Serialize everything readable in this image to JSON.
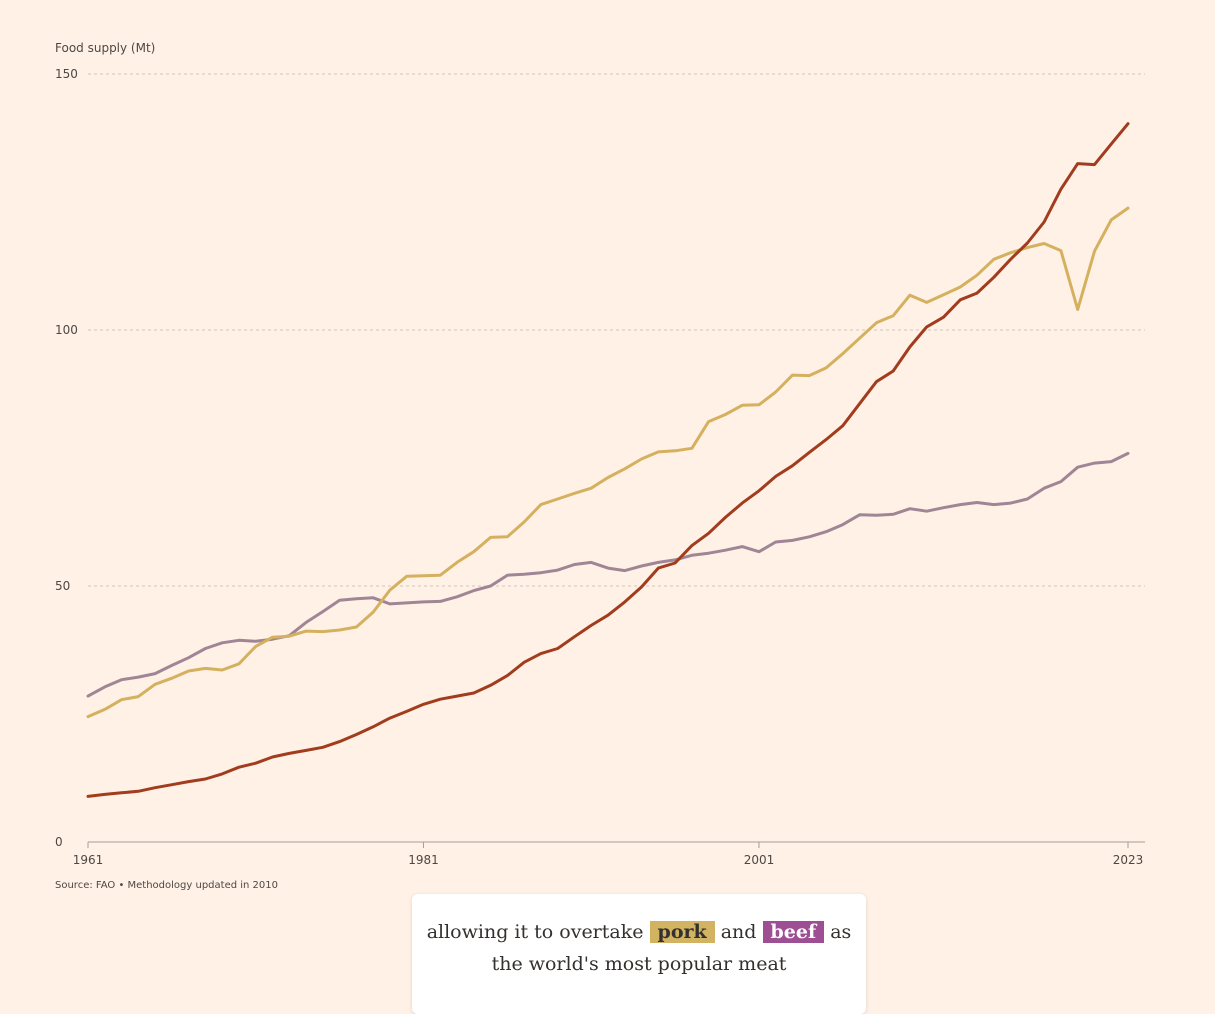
{
  "chart_data": {
    "type": "line",
    "ylabel": "Food supply (Mt)",
    "ylim": [
      0,
      150
    ],
    "yticks": [
      0,
      50,
      100,
      150
    ],
    "xlim": [
      1961,
      2023
    ],
    "xticks": [
      1961,
      1981,
      2001,
      2023
    ],
    "grid": true,
    "source": "Source: FAO • Methodology updated in 2010",
    "series": [
      {
        "key": "beef",
        "color": "#a08596",
        "x": [
          1961,
          1962,
          1963,
          1964,
          1965,
          1966,
          1967,
          1968,
          1969,
          1970,
          1971,
          1972,
          1973,
          1974,
          1975,
          1976,
          1977,
          1978,
          1979,
          1980,
          1981,
          1982,
          1983,
          1984,
          1985,
          1986,
          1987,
          1988,
          1989,
          1990,
          1991,
          1992,
          1993,
          1994,
          1995,
          1996,
          1997,
          1998,
          1999,
          2000,
          2001,
          2002,
          2003,
          2004,
          2005,
          2006,
          2007,
          2008,
          2009,
          2010,
          2011,
          2012,
          2013,
          2014,
          2015,
          2016,
          2017,
          2018,
          2019,
          2020,
          2021,
          2022,
          2023
        ],
        "values": [
          28.5,
          30.3,
          31.7,
          32.2,
          32.9,
          34.5,
          36.0,
          37.8,
          38.9,
          39.4,
          39.2,
          39.6,
          40.3,
          42.9,
          45.0,
          47.2,
          47.5,
          47.7,
          46.5,
          46.7,
          46.9,
          47.0,
          47.9,
          49.1,
          50.0,
          52.1,
          52.3,
          52.6,
          53.1,
          54.2,
          54.6,
          53.5,
          53.0,
          53.9,
          54.6,
          55.1,
          56.0,
          56.4,
          57.0,
          57.7,
          56.7,
          58.6,
          58.9,
          59.6,
          60.6,
          62.0,
          63.9,
          63.8,
          64.0,
          65.1,
          64.6,
          65.3,
          65.9,
          66.3,
          65.9,
          66.2,
          67.0,
          69.1,
          70.4,
          73.2,
          74.0,
          74.3,
          75.9
        ]
      },
      {
        "key": "pork",
        "color": "#d4b05f",
        "x": [
          1961,
          1962,
          1963,
          1964,
          1965,
          1966,
          1967,
          1968,
          1969,
          1970,
          1971,
          1972,
          1973,
          1974,
          1975,
          1976,
          1977,
          1978,
          1979,
          1980,
          1981,
          1982,
          1983,
          1984,
          1985,
          1986,
          1987,
          1988,
          1989,
          1990,
          1991,
          1992,
          1993,
          1994,
          1995,
          1996,
          1997,
          1998,
          1999,
          2000,
          2001,
          2002,
          2003,
          2004,
          2005,
          2006,
          2007,
          2008,
          2009,
          2010,
          2011,
          2012,
          2013,
          2014,
          2015,
          2016,
          2017,
          2018,
          2019,
          2020,
          2021,
          2022,
          2023
        ],
        "values": [
          24.5,
          25.9,
          27.8,
          28.4,
          30.8,
          32.0,
          33.4,
          33.9,
          33.6,
          34.8,
          38.2,
          40.0,
          40.2,
          41.2,
          41.1,
          41.4,
          42.0,
          44.9,
          49.2,
          51.9,
          52.0,
          52.1,
          54.6,
          56.7,
          59.5,
          59.6,
          62.5,
          65.9,
          67.0,
          68.1,
          69.1,
          71.2,
          72.9,
          74.8,
          76.2,
          76.4,
          76.9,
          82.1,
          83.5,
          85.3,
          85.4,
          87.9,
          91.2,
          91.1,
          92.6,
          95.4,
          98.4,
          101.4,
          102.8,
          106.8,
          105.4,
          106.9,
          108.4,
          110.7,
          113.8,
          115.1,
          116.1,
          116.9,
          115.5,
          104.0,
          115.4,
          121.5,
          123.8
        ]
      },
      {
        "key": "chicken",
        "color": "#a13c1e",
        "x": [
          1961,
          1962,
          1963,
          1964,
          1965,
          1966,
          1967,
          1968,
          1969,
          1970,
          1971,
          1972,
          1973,
          1974,
          1975,
          1976,
          1977,
          1978,
          1979,
          1980,
          1981,
          1982,
          1983,
          1984,
          1985,
          1986,
          1987,
          1988,
          1989,
          1990,
          1991,
          1992,
          1993,
          1994,
          1995,
          1996,
          1997,
          1998,
          1999,
          2000,
          2001,
          2002,
          2003,
          2004,
          2005,
          2006,
          2007,
          2008,
          2009,
          2010,
          2011,
          2012,
          2013,
          2014,
          2015,
          2016,
          2017,
          2018,
          2019,
          2020,
          2021,
          2022,
          2023
        ],
        "values": [
          8.9,
          9.3,
          9.6,
          9.9,
          10.6,
          11.2,
          11.8,
          12.3,
          13.3,
          14.6,
          15.4,
          16.6,
          17.3,
          17.9,
          18.5,
          19.6,
          21.0,
          22.5,
          24.2,
          25.5,
          26.9,
          27.9,
          28.5,
          29.1,
          30.6,
          32.5,
          35.1,
          36.8,
          37.8,
          40.1,
          42.3,
          44.3,
          46.9,
          49.8,
          53.5,
          54.5,
          57.9,
          60.3,
          63.4,
          66.2,
          68.6,
          71.4,
          73.5,
          76.1,
          78.6,
          81.3,
          85.6,
          89.9,
          92.0,
          96.7,
          100.6,
          102.5,
          105.9,
          107.2,
          110.3,
          113.8,
          117.0,
          121.1,
          127.5,
          132.5,
          132.3,
          136.3,
          140.3
        ]
      }
    ]
  },
  "caption": {
    "line1_before": "allowing it to overtake",
    "pork_label": "pork",
    "and_text": "and",
    "beef_label": "beef",
    "as_text": "as",
    "line2": "the world's most popular meat"
  }
}
